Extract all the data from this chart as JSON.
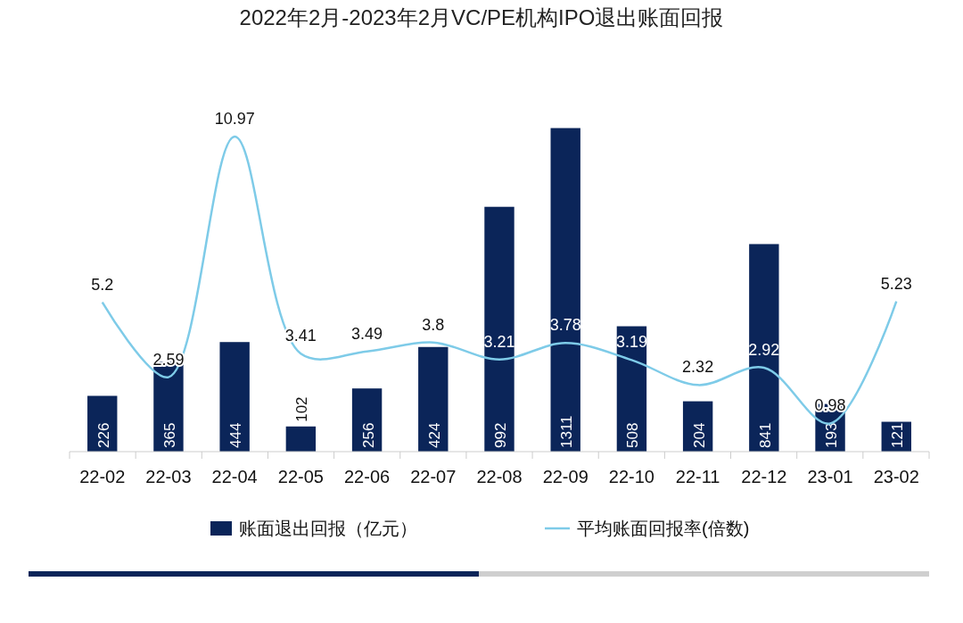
{
  "chart_data": {
    "type": "bar",
    "title": "2022年2月-2023年2月VC/PE机构IPO退出账面回报",
    "categories": [
      "22-02",
      "22-03",
      "22-04",
      "22-05",
      "22-06",
      "22-07",
      "22-08",
      "22-09",
      "22-10",
      "22-11",
      "22-12",
      "23-01",
      "23-02"
    ],
    "series": [
      {
        "name": "账面退出回报（亿元）",
        "color": "#0b2559",
        "values": [
          226,
          365,
          444,
          102,
          256,
          424,
          992,
          1311,
          508,
          204,
          841,
          193,
          121
        ]
      },
      {
        "name": "平均账面回报率(倍数)",
        "type": "line",
        "axis": "y2",
        "color": "#7ecbe8",
        "values": [
          5.2,
          2.59,
          10.97,
          3.41,
          3.49,
          3.8,
          3.21,
          3.78,
          3.19,
          2.32,
          2.92,
          0.98,
          5.23
        ]
      }
    ],
    "data_labels": true,
    "legend": "bottom",
    "tick_labels": "x"
  }
}
